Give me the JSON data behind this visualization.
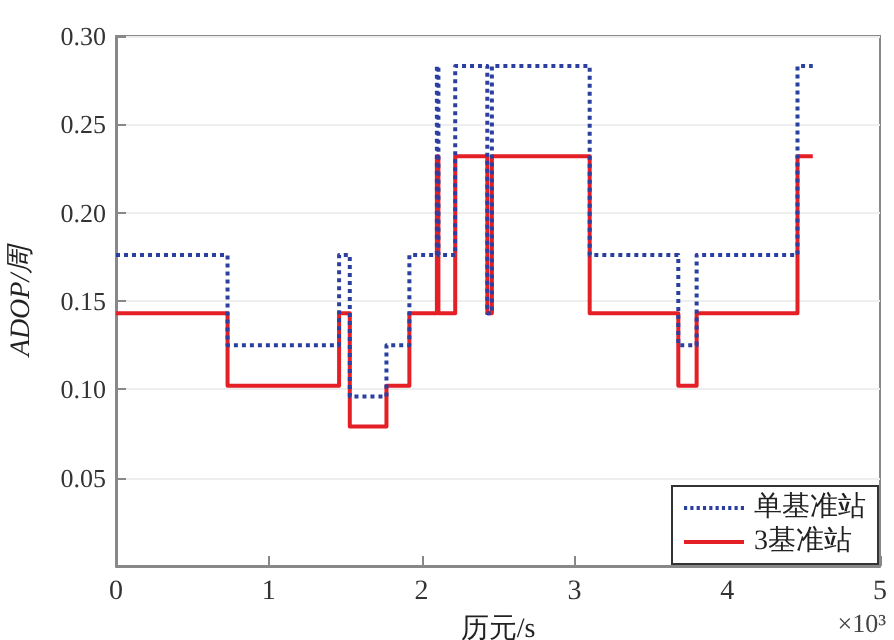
{
  "chart_data": {
    "type": "step",
    "xlabel": "历元/s",
    "ylabel": "ADOP/周",
    "annotations": [
      "×10³"
    ],
    "x": [
      0,
      0.73,
      1.46,
      1.53,
      1.77,
      1.92,
      2.1,
      2.11,
      2.22,
      2.43,
      2.46,
      3.1,
      3.68,
      3.8,
      4.46,
      4.56
    ],
    "series": [
      {
        "name": "单基准站",
        "color": "#2b3fa0",
        "line_style": "dotted",
        "values": [
          0.176,
          0.125,
          0.176,
          0.096,
          0.125,
          0.176,
          0.283,
          0.176,
          0.283,
          0.143,
          0.283,
          0.176,
          0.125,
          0.176,
          0.283,
          0.283
        ]
      },
      {
        "name": "3基准站",
        "color": "#e41f26",
        "line_style": "solid",
        "values": [
          0.143,
          0.102,
          0.143,
          0.079,
          0.102,
          0.143,
          0.232,
          0.143,
          0.232,
          0.143,
          0.232,
          0.143,
          0.102,
          0.143,
          0.232,
          0.232
        ]
      }
    ],
    "xlim": [
      0,
      5
    ],
    "xticks": [
      0,
      1,
      2,
      3,
      4,
      5
    ],
    "ylim": [
      0,
      0.3
    ],
    "yticks": [
      {
        "value": 0,
        "label": null
      },
      0.05,
      {
        "value": 0.1,
        "label": "0.10"
      },
      0.15,
      {
        "value": 0.2,
        "label": "0.20"
      },
      0.25,
      {
        "value": 0.3,
        "label": "0.30"
      }
    ],
    "grid": "y",
    "legend": "bottom right",
    "marker": "none"
  }
}
